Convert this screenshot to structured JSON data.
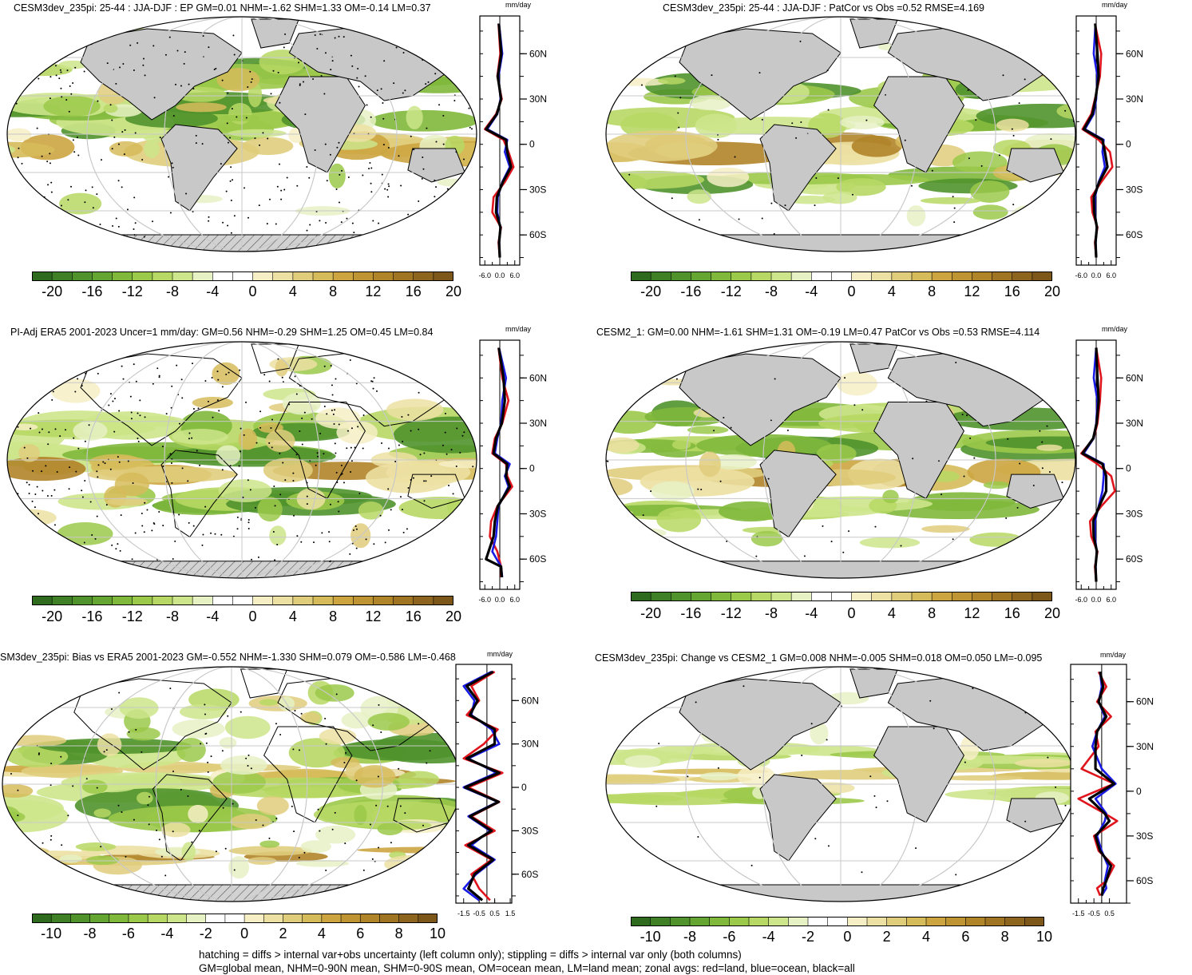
{
  "panels": [
    {
      "id": "p1",
      "title": "CESM3dev_235pi: 25-44 : JJA-DJF : EP GM=0.01 NHM=-1.62 SHM=1.33 OM=-0.14 LM=0.37",
      "units": "mm/day",
      "lat_ticks": [
        "60N",
        "30N",
        "0",
        "30S",
        "60S"
      ],
      "x_ticks": [
        "-6.0",
        "0.0",
        "6.0"
      ],
      "colorbar_labels": [
        "-20",
        "-16",
        "-12",
        "-8",
        "-4",
        "0",
        "4",
        "8",
        "12",
        "16",
        "20"
      ]
    },
    {
      "id": "p2",
      "title": "CESM3dev_235pi: 25-44 : JJA-DJF : PatCor vs Obs =0.52 RMSE=4.169",
      "units": "mm/day",
      "lat_ticks": [
        "60N",
        "30N",
        "0",
        "30S",
        "60S"
      ],
      "x_ticks": [
        "-6.0",
        "0.0",
        "6.0"
      ],
      "colorbar_labels": [
        "-20",
        "-16",
        "-12",
        "-8",
        "-4",
        "0",
        "4",
        "8",
        "12",
        "16",
        "20"
      ]
    },
    {
      "id": "p3",
      "title": "PI-Adj ERA5 2001-2023 Uncer=1 mm/day: GM=0.56 NHM=-0.29 SHM=1.25 OM=0.45 LM=0.84",
      "units": "mm/day",
      "lat_ticks": [
        "60N",
        "30N",
        "0",
        "30S",
        "60S"
      ],
      "x_ticks": [
        "-6.0",
        "0.0",
        "6.0"
      ],
      "colorbar_labels": [
        "-20",
        "-16",
        "-12",
        "-8",
        "-4",
        "0",
        "4",
        "8",
        "12",
        "16",
        "20"
      ]
    },
    {
      "id": "p4",
      "title": "CESM2_1: GM=0.00 NHM=-1.61 SHM=1.31 OM=-0.19 LM=0.47 PatCor vs Obs =0.53 RMSE=4.114",
      "units": "mm/day",
      "lat_ticks": [
        "60N",
        "30N",
        "0",
        "30S",
        "60S"
      ],
      "x_ticks": [
        "-6.0",
        "0.0",
        "6.0"
      ],
      "colorbar_labels": [
        "-20",
        "-16",
        "-12",
        "-8",
        "-4",
        "0",
        "4",
        "8",
        "12",
        "16",
        "20"
      ]
    },
    {
      "id": "p5",
      "title": "SM3dev_235pi: Bias vs ERA5 2001-2023 GM=-0.552 NHM=-1.330 SHM=0.079 OM=-0.586 LM=-0.468",
      "units": "mm/day",
      "lat_ticks": [
        "60N",
        "30N",
        "0",
        "30S",
        "60S"
      ],
      "x_ticks": [
        "-1.5",
        "-0.5",
        "0.5",
        "1.5"
      ],
      "colorbar_labels": [
        "-10",
        "-8",
        "-6",
        "-4",
        "-2",
        "0",
        "2",
        "4",
        "6",
        "8",
        "10"
      ]
    },
    {
      "id": "p6",
      "title": "CESM3dev_235pi: Change vs CESM2_1 GM=0.008 NHM=-0.005 SHM=0.018 OM=0.050 LM=-0.095",
      "units": "mm/day",
      "lat_ticks": [
        "60N",
        "30N",
        "0",
        "30S",
        "60S"
      ],
      "x_ticks": [
        "-1.5",
        "-0.5",
        "0.5"
      ],
      "colorbar_labels": [
        "-10",
        "-8",
        "-6",
        "-4",
        "-2",
        "0",
        "2",
        "4",
        "6",
        "8",
        "10"
      ]
    }
  ],
  "colorbar_colors": [
    "#2e6b1e",
    "#3f7f25",
    "#50922c",
    "#65a532",
    "#7fb83b",
    "#9bc94a",
    "#b7d864",
    "#cde58b",
    "#e6f1c4",
    "#ffffff",
    "#ffffff",
    "#f6efc6",
    "#ece0a2",
    "#e0cd7c",
    "#d6bb5a",
    "#cca540",
    "#bf9432",
    "#b08429",
    "#9f7423",
    "#8e651e",
    "#7d571a"
  ],
  "chart_data": [
    {
      "type": "line",
      "panel": "p1",
      "xlabel": "mm/day",
      "xlim": [
        -8,
        8
      ],
      "ylim": [
        -80,
        85
      ],
      "series": [
        {
          "color": "#e0141c",
          "x": [
            -0.5,
            0.2,
            -1.0,
            0.8,
            -1.5,
            -6.0,
            1.5,
            3.5,
            5.5,
            2.0,
            -2.5,
            -3.0,
            0.5,
            -0.5,
            0.0
          ],
          "y": [
            80,
            60,
            45,
            30,
            20,
            10,
            3,
            -5,
            -15,
            -25,
            -35,
            -45,
            -55,
            -65,
            -75
          ]
        },
        {
          "color": "#1a1ae6",
          "x": [
            -0.3,
            1.0,
            -0.5,
            0.3,
            -1.0,
            -5.0,
            3.0,
            2.0,
            4.0,
            1.0,
            -0.8,
            -1.0,
            0.2,
            -0.2,
            0.0
          ],
          "y": [
            80,
            60,
            45,
            30,
            20,
            10,
            3,
            -5,
            -15,
            -25,
            -35,
            -45,
            -55,
            -65,
            -75
          ]
        },
        {
          "color": "#000000",
          "x": [
            -0.4,
            0.6,
            -0.8,
            0.5,
            -1.2,
            -5.5,
            2.5,
            3.0,
            4.5,
            1.2,
            -1.2,
            -1.5,
            0.3,
            -0.3,
            0.0
          ],
          "y": [
            80,
            60,
            45,
            30,
            20,
            10,
            3,
            -5,
            -15,
            -25,
            -35,
            -45,
            -55,
            -65,
            -75
          ]
        }
      ]
    },
    {
      "type": "line",
      "panel": "p2",
      "xlabel": "mm/day",
      "xlim": [
        -8,
        8
      ],
      "ylim": [
        -80,
        85
      ],
      "series": [
        {
          "color": "#e0141c",
          "x": [
            -0.5,
            2.0,
            1.5,
            -0.5,
            -2.0,
            -5.5,
            1.0,
            5.5,
            6.5,
            2.0,
            -2.0,
            -1.5,
            0.5,
            -0.5,
            0.0
          ],
          "y": [
            80,
            60,
            45,
            30,
            20,
            10,
            3,
            -5,
            -15,
            -25,
            -35,
            -45,
            -55,
            -65,
            -75
          ]
        },
        {
          "color": "#1a1ae6",
          "x": [
            -0.3,
            -1.0,
            0.5,
            0.0,
            -1.0,
            -4.5,
            3.0,
            2.5,
            3.5,
            1.0,
            -0.5,
            -0.5,
            0.2,
            -0.2,
            0.0
          ],
          "y": [
            80,
            60,
            45,
            30,
            20,
            10,
            3,
            -5,
            -15,
            -25,
            -35,
            -45,
            -55,
            -65,
            -75
          ]
        },
        {
          "color": "#000000",
          "x": [
            -0.4,
            0.5,
            1.0,
            -0.3,
            -1.5,
            -5.0,
            2.5,
            3.5,
            4.5,
            1.2,
            -1.0,
            -0.8,
            0.3,
            -0.3,
            0.0
          ],
          "y": [
            80,
            60,
            45,
            30,
            20,
            10,
            3,
            -5,
            -15,
            -25,
            -35,
            -45,
            -55,
            -65,
            -75
          ]
        }
      ]
    },
    {
      "type": "line",
      "panel": "p3",
      "xlabel": "mm/day",
      "xlim": [
        -8,
        8
      ],
      "ylim": [
        -80,
        85
      ],
      "series": [
        {
          "color": "#e0141c",
          "x": [
            -0.5,
            1.0,
            3.5,
            1.0,
            -2.0,
            -3.0,
            2.5,
            3.0,
            5.0,
            -1.0,
            -3.5,
            -4.0,
            -1.0,
            0.5,
            0.5
          ],
          "y": [
            80,
            60,
            45,
            30,
            20,
            10,
            3,
            -5,
            -12,
            -25,
            -35,
            -45,
            -55,
            -65,
            -72
          ]
        },
        {
          "color": "#1a1ae6",
          "x": [
            -0.3,
            2.5,
            1.0,
            0.5,
            -1.0,
            -2.0,
            4.0,
            2.0,
            3.5,
            -0.5,
            -1.0,
            -1.5,
            -3.0,
            0.5,
            1.0
          ],
          "y": [
            80,
            60,
            45,
            30,
            20,
            10,
            3,
            -5,
            -12,
            -25,
            -35,
            -45,
            -55,
            -65,
            -72
          ]
        },
        {
          "color": "#000000",
          "x": [
            -0.4,
            1.5,
            2.0,
            0.8,
            -1.5,
            -2.5,
            3.0,
            2.5,
            4.0,
            -0.8,
            -2.0,
            -2.5,
            -5.5,
            0.5,
            0.8
          ],
          "y": [
            80,
            60,
            45,
            30,
            20,
            10,
            3,
            -5,
            -12,
            -25,
            -35,
            -45,
            -60,
            -65,
            -72
          ]
        }
      ]
    },
    {
      "type": "line",
      "panel": "p4",
      "xlabel": "mm/day",
      "xlim": [
        -8,
        8
      ],
      "ylim": [
        -80,
        85
      ],
      "series": [
        {
          "color": "#e0141c",
          "x": [
            0.0,
            2.0,
            1.5,
            0.5,
            -1.0,
            -6.0,
            0.5,
            6.0,
            7.5,
            2.0,
            -2.5,
            -2.0,
            0.5,
            -0.5,
            0.0
          ],
          "y": [
            80,
            60,
            45,
            30,
            20,
            10,
            3,
            -5,
            -15,
            -25,
            -35,
            -45,
            -55,
            -65,
            -75
          ]
        },
        {
          "color": "#1a1ae6",
          "x": [
            0.0,
            -1.0,
            0.5,
            0.0,
            -1.0,
            -5.0,
            3.0,
            3.0,
            2.5,
            1.0,
            -0.5,
            -0.5,
            0.2,
            -0.2,
            0.0
          ],
          "y": [
            80,
            60,
            45,
            30,
            20,
            10,
            3,
            -5,
            -15,
            -25,
            -35,
            -45,
            -55,
            -65,
            -75
          ]
        },
        {
          "color": "#000000",
          "x": [
            0.0,
            0.5,
            1.0,
            0.2,
            -1.2,
            -5.5,
            2.5,
            4.0,
            4.0,
            1.2,
            -1.2,
            -1.0,
            0.3,
            -0.3,
            0.0
          ],
          "y": [
            80,
            60,
            45,
            30,
            20,
            10,
            3,
            -5,
            -15,
            -25,
            -35,
            -45,
            -55,
            -65,
            -75
          ]
        }
      ]
    },
    {
      "type": "line",
      "panel": "p5",
      "xlabel": "mm/day",
      "xlim": [
        -2.0,
        1.6
      ],
      "ylim": [
        -80,
        85
      ],
      "series": [
        {
          "color": "#e0141c",
          "x": [
            0.5,
            -1.0,
            -0.5,
            -1.3,
            0.7,
            -0.2,
            -1.5,
            1.0,
            -1.2,
            0.8,
            -1.0,
            0.5,
            -1.4,
            0.3,
            -1.0,
            -0.5,
            0.2
          ],
          "y": [
            80,
            70,
            60,
            50,
            40,
            30,
            20,
            10,
            0,
            -10,
            -20,
            -30,
            -40,
            -50,
            -60,
            -70,
            -78
          ]
        },
        {
          "color": "#1a1ae6",
          "x": [
            0.3,
            -1.5,
            -0.8,
            -1.0,
            0.3,
            0.8,
            -1.2,
            0.6,
            -1.5,
            0.7,
            -1.2,
            0.2,
            -1.0,
            0.5,
            -0.7,
            -1.5,
            -0.5
          ],
          "y": [
            80,
            70,
            60,
            50,
            40,
            30,
            20,
            10,
            0,
            -10,
            -20,
            -30,
            -40,
            -50,
            -60,
            -70,
            -78
          ]
        },
        {
          "color": "#000000",
          "x": [
            0.4,
            -1.3,
            -0.6,
            -1.1,
            0.5,
            0.5,
            -1.3,
            0.8,
            -1.4,
            0.75,
            -1.1,
            0.3,
            -1.2,
            0.4,
            -0.8,
            -1.2,
            -0.3
          ],
          "y": [
            80,
            70,
            60,
            50,
            40,
            30,
            20,
            10,
            0,
            -10,
            -20,
            -30,
            -40,
            -50,
            -60,
            -70,
            -78
          ]
        }
      ]
    },
    {
      "type": "line",
      "panel": "p6",
      "xlabel": "mm/day",
      "xlim": [
        -2.0,
        1.6
      ],
      "ylim": [
        -75,
        85
      ],
      "series": [
        {
          "color": "#e0141c",
          "x": [
            -0.2,
            0.3,
            -0.3,
            0.6,
            -0.4,
            -0.2,
            -1.3,
            0.8,
            -1.5,
            0.2,
            1.0,
            -0.5,
            -0.2,
            0.8,
            0.3,
            -0.3,
            -0.1
          ],
          "y": [
            80,
            70,
            60,
            50,
            40,
            30,
            15,
            5,
            -5,
            -15,
            -20,
            -30,
            -40,
            -50,
            -60,
            -65,
            -70
          ]
        },
        {
          "color": "#1a1ae6",
          "x": [
            -0.1,
            0.0,
            -0.2,
            0.2,
            -0.3,
            -0.6,
            0.0,
            0.9,
            -0.4,
            0.3,
            0.2,
            -0.3,
            0.0,
            0.4,
            0.2,
            0.3,
            0.0
          ],
          "y": [
            80,
            70,
            60,
            50,
            40,
            30,
            15,
            5,
            -5,
            -15,
            -20,
            -30,
            -40,
            -50,
            -60,
            -65,
            -70
          ]
        },
        {
          "color": "#000000",
          "x": [
            -0.1,
            0.1,
            -0.2,
            0.3,
            -0.3,
            -0.4,
            -0.4,
            0.8,
            -0.8,
            0.2,
            0.5,
            -0.4,
            -0.1,
            0.6,
            0.3,
            0.1,
            0.0
          ],
          "y": [
            80,
            70,
            60,
            50,
            40,
            30,
            15,
            5,
            -5,
            -15,
            -20,
            -30,
            -40,
            -50,
            -60,
            -65,
            -70
          ]
        }
      ]
    }
  ],
  "footer": {
    "line1": "hatching = diffs > internal var+obs uncertainty (left column only); stippling = diffs > internal var only (both columns)",
    "line2": "GM=global mean, NHM=0-90N mean, SHM=0-90S mean, OM=ocean mean, LM=land mean; zonal avgs: red=land, blue=ocean, black=all"
  }
}
